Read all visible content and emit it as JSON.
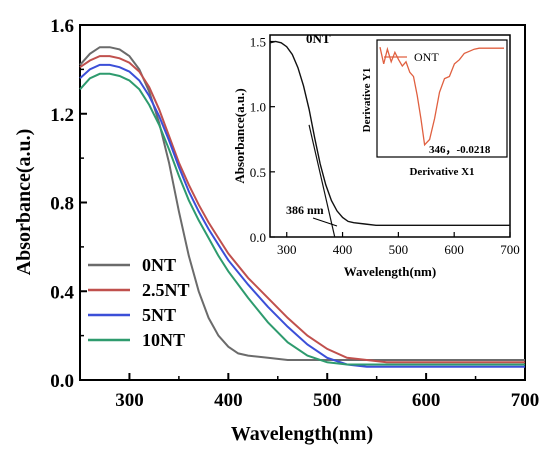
{
  "chart_data": [
    {
      "type": "line",
      "xlabel": "Wavelength(nm)",
      "ylabel": "Absorbance(a.u.)",
      "xlim": [
        250,
        700
      ],
      "ylim": [
        0,
        1.6
      ],
      "xticks": [
        "300",
        "400",
        "500",
        "600",
        "700"
      ],
      "yticks": [
        "0.0",
        "0.4",
        "0.8",
        "1.2",
        "1.6"
      ],
      "legend": "bottom-left",
      "series": [
        {
          "name": "0NT",
          "color": "#6b6b6b",
          "x": [
            250,
            260,
            270,
            280,
            290,
            300,
            310,
            320,
            330,
            340,
            350,
            360,
            370,
            380,
            390,
            400,
            410,
            420,
            440,
            460,
            500,
            600,
            700
          ],
          "y": [
            1.42,
            1.47,
            1.5,
            1.5,
            1.49,
            1.46,
            1.4,
            1.3,
            1.16,
            0.98,
            0.76,
            0.56,
            0.4,
            0.28,
            0.2,
            0.15,
            0.12,
            0.11,
            0.1,
            0.09,
            0.09,
            0.09,
            0.09
          ]
        },
        {
          "name": "2.5NT",
          "color": "#c0504d",
          "x": [
            250,
            260,
            270,
            280,
            290,
            300,
            310,
            320,
            330,
            340,
            350,
            360,
            370,
            380,
            390,
            400,
            420,
            440,
            460,
            480,
            500,
            520,
            540,
            560,
            600,
            700
          ],
          "y": [
            1.41,
            1.44,
            1.46,
            1.46,
            1.45,
            1.43,
            1.39,
            1.32,
            1.22,
            1.1,
            0.98,
            0.88,
            0.79,
            0.71,
            0.64,
            0.57,
            0.46,
            0.37,
            0.28,
            0.2,
            0.14,
            0.1,
            0.09,
            0.08,
            0.08,
            0.08
          ]
        },
        {
          "name": "5NT",
          "color": "#3b4fd8",
          "x": [
            250,
            260,
            270,
            280,
            290,
            300,
            310,
            320,
            330,
            340,
            350,
            360,
            370,
            380,
            390,
            400,
            420,
            440,
            460,
            480,
            500,
            520,
            540,
            560,
            600,
            700
          ],
          "y": [
            1.36,
            1.4,
            1.42,
            1.42,
            1.41,
            1.39,
            1.35,
            1.28,
            1.19,
            1.08,
            0.96,
            0.85,
            0.76,
            0.68,
            0.61,
            0.54,
            0.43,
            0.33,
            0.24,
            0.16,
            0.1,
            0.07,
            0.06,
            0.06,
            0.06,
            0.06
          ]
        },
        {
          "name": "10NT",
          "color": "#2e9b6e",
          "x": [
            250,
            260,
            270,
            280,
            290,
            300,
            310,
            320,
            330,
            340,
            350,
            360,
            370,
            380,
            390,
            400,
            420,
            440,
            460,
            480,
            500,
            520,
            600,
            700
          ],
          "y": [
            1.31,
            1.36,
            1.38,
            1.38,
            1.37,
            1.35,
            1.31,
            1.24,
            1.15,
            1.04,
            0.92,
            0.81,
            0.72,
            0.64,
            0.56,
            0.49,
            0.37,
            0.26,
            0.17,
            0.11,
            0.08,
            0.07,
            0.07,
            0.07
          ]
        }
      ]
    },
    {
      "type": "line",
      "xlabel": "Wavelength(nm)",
      "ylabel": "Absorbance(a.u.)",
      "xlim": [
        270,
        700
      ],
      "ylim": [
        0,
        1.55
      ],
      "xticks": [
        "300",
        "400",
        "500",
        "600",
        "700"
      ],
      "yticks": [
        "0.0",
        "0.5",
        "1.0",
        "1.5"
      ],
      "series": [
        {
          "name": "0NT",
          "color": "#111111",
          "x": [
            270,
            280,
            290,
            300,
            310,
            320,
            330,
            340,
            350,
            360,
            370,
            380,
            390,
            400,
            410,
            420,
            440,
            460,
            500,
            600,
            700
          ],
          "y": [
            1.49,
            1.5,
            1.49,
            1.46,
            1.4,
            1.3,
            1.16,
            0.98,
            0.76,
            0.56,
            0.4,
            0.28,
            0.2,
            0.15,
            0.12,
            0.11,
            0.1,
            0.09,
            0.09,
            0.09,
            0.09
          ]
        }
      ],
      "tangent": {
        "x": [
          340,
          386
        ],
        "y": [
          0.86,
          0.0
        ]
      },
      "annotation": "386 nm"
    },
    {
      "type": "line",
      "xlabel": "Derivative X1",
      "ylabel": "Derivative Y1",
      "series": [
        {
          "name": "ONT",
          "color": "#e06040",
          "x": [
            0,
            0.03,
            0.06,
            0.09,
            0.12,
            0.15,
            0.18,
            0.21,
            0.24,
            0.27,
            0.3,
            0.33,
            0.36,
            0.4,
            0.44,
            0.48,
            0.52,
            0.56,
            0.6,
            0.64,
            0.68,
            0.72,
            0.76,
            0.8,
            1.0
          ],
          "y": [
            0.98,
            0.82,
            0.96,
            0.84,
            0.93,
            0.86,
            0.8,
            0.84,
            0.74,
            0.7,
            0.52,
            0.3,
            0.05,
            0.1,
            0.3,
            0.55,
            0.68,
            0.7,
            0.82,
            0.86,
            0.92,
            0.94,
            0.96,
            0.97,
            0.97
          ]
        }
      ],
      "annotation": "346，-0.0218"
    }
  ]
}
